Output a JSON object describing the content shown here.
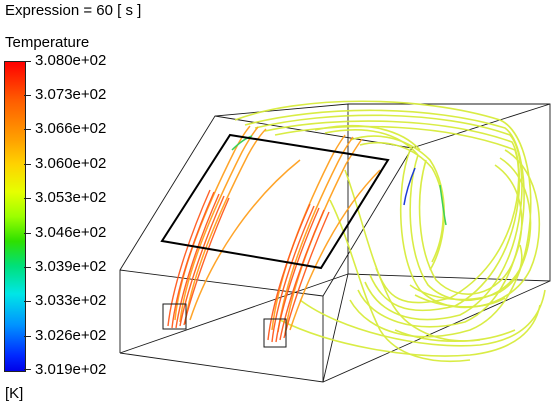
{
  "expression": {
    "text": "Expression = 60 [ s ]"
  },
  "legend": {
    "title": "Temperature",
    "unit": "[K]",
    "ticks": [
      "3.080e+02",
      "3.073e+02",
      "3.066e+02",
      "3.060e+02",
      "3.053e+02",
      "3.046e+02",
      "3.039e+02",
      "3.033e+02",
      "3.026e+02",
      "3.019e+02"
    ],
    "colors": [
      "#ff0000",
      "#ffa000",
      "#e6ff00",
      "#2ee000",
      "#00e6e6",
      "#0000e8"
    ]
  },
  "scene": {
    "streamline_colors": {
      "hot": "#ff5a1e",
      "warm": "#ffa01e",
      "neutral": "#d7ec3c",
      "cool_green": "#3dd05a",
      "cold_blue": "#1d3bd6"
    }
  }
}
